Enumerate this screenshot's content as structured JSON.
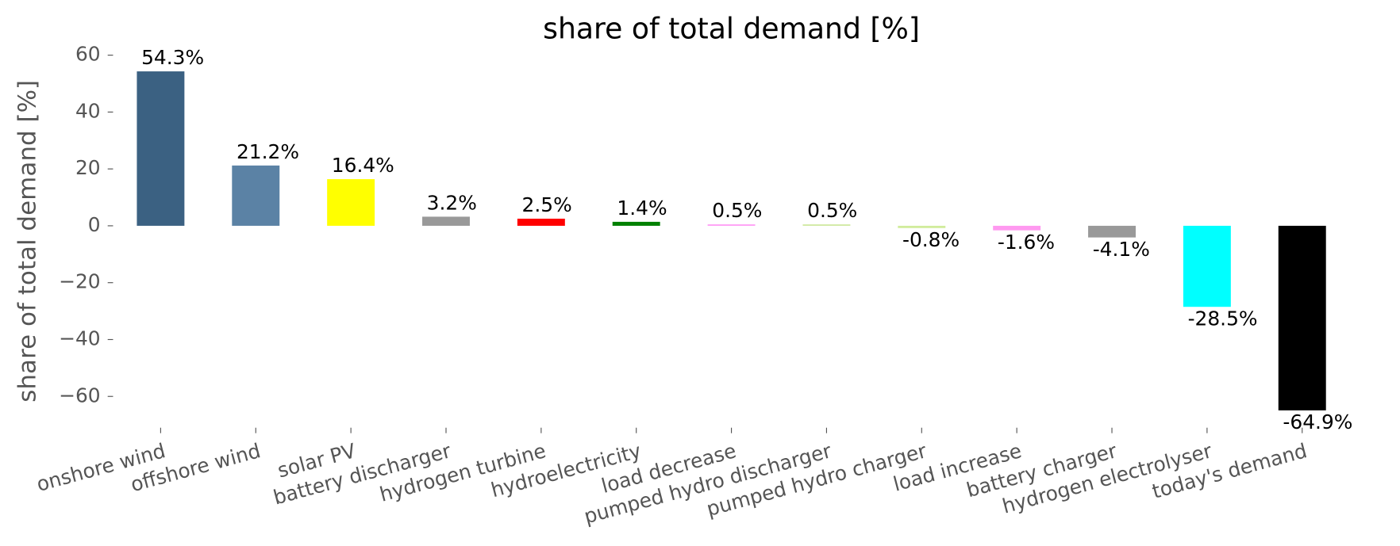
{
  "chart_data": {
    "type": "bar",
    "title": "share of total demand [%]",
    "ylabel": "share of total demand [%]",
    "categories": [
      "onshore wind",
      "offshore wind",
      "solar PV",
      "battery discharger",
      "hydrogen turbine",
      "hydroelectricity",
      "load decrease",
      "pumped hydro discharger",
      "pumped hydro charger",
      "load increase",
      "battery charger",
      "hydrogen electrolyser",
      "today's demand"
    ],
    "values": [
      54.3,
      21.2,
      16.4,
      3.2,
      2.5,
      1.4,
      0.5,
      0.5,
      -0.8,
      -1.6,
      -4.1,
      -28.5,
      -64.9
    ],
    "value_labels": [
      "54.3%",
      "21.2%",
      "16.4%",
      "3.2%",
      "2.5%",
      "1.4%",
      "0.5%",
      "0.5%",
      "-0.8%",
      "-1.6%",
      "-4.1%",
      "-28.5%",
      "-64.9%"
    ],
    "colors": [
      "#3b6182",
      "#5b82a5",
      "#ffff00",
      "#999999",
      "#ff0000",
      "#008000",
      "#ff9cf5",
      "#cfe89f",
      "#d1ec9c",
      "#ff99f0",
      "#999999",
      "#00ffff",
      "#000000"
    ],
    "ylim": [
      -71,
      65
    ],
    "yticks": [
      {
        "value": -60,
        "label": "−60"
      },
      {
        "value": -40,
        "label": "−40"
      },
      {
        "value": -20,
        "label": "−20"
      },
      0,
      20,
      40,
      60
    ]
  }
}
